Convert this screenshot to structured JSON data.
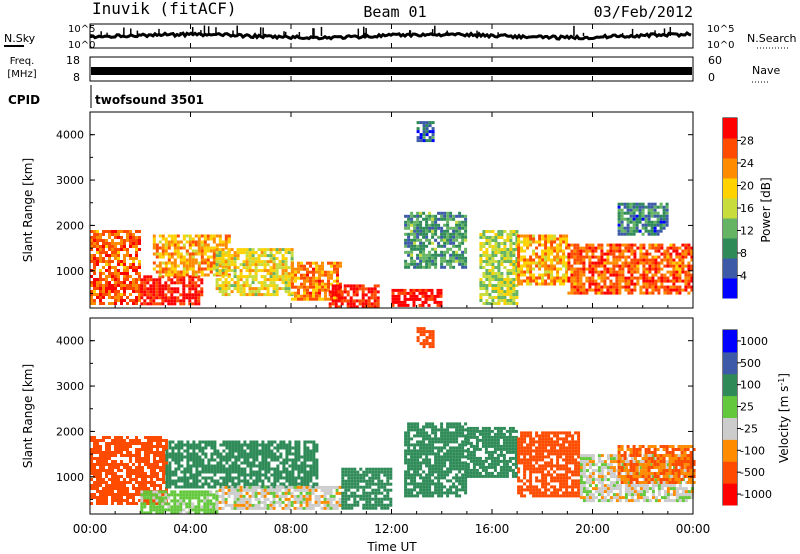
{
  "header": {
    "station": "Inuvik (fitACF)",
    "beam": "Beam 01",
    "date": "03/Feb/2012"
  },
  "noise_panel": {
    "left_label": "N.Sky",
    "right_label": "N.Search",
    "tick_top": "10^5",
    "tick_bottom": "10^0"
  },
  "freq_panel": {
    "left_label_1": "Freq.",
    "left_label_2": "[MHz]",
    "tick_top": "18",
    "tick_bottom": "8",
    "right_label": "Nave",
    "right_tick_top": "60",
    "right_tick_bottom": "0"
  },
  "cpid_panel": {
    "label": "CPID",
    "program": "twofsound 3501"
  },
  "colors": {
    "power": [
      "#0000ff",
      "#3c5aa8",
      "#2e8b57",
      "#64b464",
      "#c8dc3c",
      "#ffd200",
      "#ff8c00",
      "#ff4b00",
      "#ff0000"
    ],
    "velocity": [
      "#ff0000",
      "#ff4b00",
      "#ff8c00",
      "#cccccc",
      "#64c83c",
      "#2e8b57",
      "#3c5aa8",
      "#0000ff"
    ]
  },
  "chart_data": [
    {
      "type": "heatmap",
      "name": "power",
      "title": "",
      "ylabel": "Slant Range [km]",
      "xlabel": "",
      "ylim": [
        180,
        4500
      ],
      "xlim": [
        0,
        24
      ],
      "yticks": [
        1000,
        2000,
        3000,
        4000
      ],
      "ytick_labels": [
        "1000",
        "2000",
        "3000",
        "4000"
      ],
      "colorbar": {
        "label": "Power [dB]",
        "range": [
          0,
          32
        ],
        "ticks": [
          "4",
          "8",
          "12",
          "16",
          "20",
          "24",
          "28"
        ]
      },
      "regions": [
        {
          "x": [
            0,
            2
          ],
          "y": [
            300,
            1900
          ],
          "value": 26
        },
        {
          "x": [
            2,
            4.5
          ],
          "y": [
            250,
            900
          ],
          "value": 30
        },
        {
          "x": [
            2.5,
            5.5
          ],
          "y": [
            900,
            1800
          ],
          "value": 22
        },
        {
          "x": [
            5,
            8
          ],
          "y": [
            500,
            1500
          ],
          "value": 18
        },
        {
          "x": [
            8,
            10
          ],
          "y": [
            400,
            1200
          ],
          "value": 24
        },
        {
          "x": [
            9.5,
            11.5
          ],
          "y": [
            200,
            700
          ],
          "value": 30
        },
        {
          "x": [
            12,
            14
          ],
          "y": [
            250,
            600
          ],
          "value": 30
        },
        {
          "x": [
            12.5,
            15
          ],
          "y": [
            1100,
            2300
          ],
          "value": 10
        },
        {
          "x": [
            15.5,
            17
          ],
          "y": [
            300,
            1900
          ],
          "value": 16
        },
        {
          "x": [
            17,
            19
          ],
          "y": [
            700,
            1800
          ],
          "value": 22
        },
        {
          "x": [
            19,
            24
          ],
          "y": [
            500,
            1600
          ],
          "value": 26
        },
        {
          "x": [
            21,
            23
          ],
          "y": [
            1800,
            2500
          ],
          "value": 8
        },
        {
          "x": [
            13,
            13.6
          ],
          "y": [
            3900,
            4300
          ],
          "value": 6
        }
      ]
    },
    {
      "type": "heatmap",
      "name": "velocity",
      "title": "",
      "ylabel": "Slant Range [km]",
      "xlabel": "Time UT",
      "ylim": [
        180,
        4500
      ],
      "xlim": [
        0,
        24
      ],
      "yticks": [
        1000,
        2000,
        3000,
        4000
      ],
      "ytick_labels": [
        "1000",
        "2000",
        "3000",
        "4000"
      ],
      "xticks": [
        0,
        4,
        8,
        12,
        16,
        20,
        24
      ],
      "xtick_labels": [
        "00:00",
        "04:00",
        "08:00",
        "12:00",
        "16:00",
        "20:00",
        "00:00"
      ],
      "colorbar": {
        "label": "Velocity [m s^-1]",
        "ticks": [
          "1000",
          "500",
          "100",
          "25",
          "-25",
          "-100",
          "-500",
          "-1000"
        ]
      },
      "regions": [
        {
          "x": [
            0,
            3
          ],
          "y": [
            400,
            1900
          ],
          "value": -300
        },
        {
          "x": [
            2,
            5
          ],
          "y": [
            200,
            700
          ],
          "value": 50
        },
        {
          "x": [
            3,
            9
          ],
          "y": [
            800,
            1800
          ],
          "value": 250
        },
        {
          "x": [
            5,
            10
          ],
          "y": [
            300,
            800
          ],
          "value": 0
        },
        {
          "x": [
            10,
            12
          ],
          "y": [
            300,
            1200
          ],
          "value": 300
        },
        {
          "x": [
            12.5,
            15
          ],
          "y": [
            600,
            2200
          ],
          "value": 250
        },
        {
          "x": [
            15,
            17
          ],
          "y": [
            1000,
            2100
          ],
          "value": 250
        },
        {
          "x": [
            17,
            19.5
          ],
          "y": [
            600,
            2000
          ],
          "value": -300
        },
        {
          "x": [
            19.5,
            24
          ],
          "y": [
            500,
            1500
          ],
          "value": 0
        },
        {
          "x": [
            21,
            24
          ],
          "y": [
            900,
            1700
          ],
          "value": -100
        },
        {
          "x": [
            13,
            13.6
          ],
          "y": [
            3900,
            4300
          ],
          "value": -200
        }
      ]
    }
  ]
}
